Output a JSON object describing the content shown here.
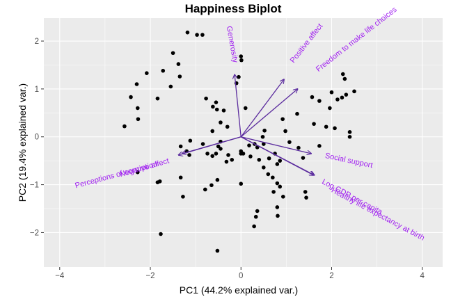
{
  "chart_data": {
    "type": "scatter",
    "title": "Happiness Biplot",
    "xlabel": "PC1 (44.2% explained var.)",
    "ylabel": "PC2 (19.4% explained var.)",
    "xlim": [
      -4.35,
      4.45
    ],
    "ylim": [
      -2.72,
      2.48
    ],
    "xticks": [
      -4,
      -2,
      0,
      2,
      4
    ],
    "yticks": [
      -2,
      -1,
      0,
      1,
      2
    ],
    "xtick_labels": [
      "−4",
      "−2",
      "0",
      "2",
      "4"
    ],
    "ytick_labels": [
      "−2",
      "−1",
      "0",
      "1",
      "2"
    ],
    "grid": true,
    "colors": {
      "panel": "#ebebeb",
      "grid_major": "#ffffff",
      "points": "#000000",
      "arrows": "#5b2c9e",
      "labels": "#a020f0"
    },
    "points": [
      [
        -1.18,
        2.18
      ],
      [
        -0.97,
        2.13
      ],
      [
        -0.85,
        2.13
      ],
      [
        0.0,
        1.68
      ],
      [
        0.01,
        1.6
      ],
      [
        -1.5,
        1.75
      ],
      [
        -1.38,
        1.52
      ],
      [
        -1.72,
        1.38
      ],
      [
        -2.08,
        1.33
      ],
      [
        -1.35,
        1.26
      ],
      [
        -2.3,
        1.1
      ],
      [
        -1.55,
        1.05
      ],
      [
        -0.05,
        1.25
      ],
      [
        -0.1,
        1.12
      ],
      [
        -2.43,
        0.83
      ],
      [
        -1.84,
        0.8
      ],
      [
        -2.28,
        0.6
      ],
      [
        -2.27,
        0.37
      ],
      [
        -2.57,
        0.22
      ],
      [
        -0.77,
        0.8
      ],
      [
        -0.55,
        0.72
      ],
      [
        -0.62,
        0.63
      ],
      [
        -0.53,
        0.57
      ],
      [
        -0.38,
        0.55
      ],
      [
        -0.45,
        0.3
      ],
      [
        -0.3,
        0.21
      ],
      [
        -0.63,
        0.12
      ],
      [
        0.1,
        0.6
      ],
      [
        0.92,
        0.37
      ],
      [
        1.24,
        0.48
      ],
      [
        1.57,
        0.83
      ],
      [
        1.73,
        0.75
      ],
      [
        2.0,
        0.93
      ],
      [
        2.13,
        0.78
      ],
      [
        2.23,
        0.82
      ],
      [
        2.32,
        0.88
      ],
      [
        2.5,
        0.95
      ],
      [
        2.25,
        1.31
      ],
      [
        2.29,
        1.21
      ],
      [
        1.96,
        0.6
      ],
      [
        1.61,
        0.27
      ],
      [
        1.88,
        0.21
      ],
      [
        2.07,
        0.18
      ],
      [
        2.4,
        0.1
      ],
      [
        2.4,
        0.0
      ],
      [
        0.98,
        0.12
      ],
      [
        1.07,
        -0.11
      ],
      [
        1.73,
        -0.19
      ],
      [
        1.27,
        -0.23
      ],
      [
        1.37,
        -0.44
      ],
      [
        0.52,
        0.13
      ],
      [
        0.48,
        0.0
      ],
      [
        0.3,
        -0.15
      ],
      [
        0.18,
        -0.18
      ],
      [
        0.36,
        -0.22
      ],
      [
        0.5,
        -0.15
      ],
      [
        0.75,
        -0.35
      ],
      [
        0.86,
        -0.5
      ],
      [
        0.8,
        -0.57
      ],
      [
        0.62,
        -0.45
      ],
      [
        0.4,
        -0.48
      ],
      [
        0.5,
        -0.64
      ],
      [
        0.6,
        -0.78
      ],
      [
        0.7,
        -0.85
      ],
      [
        0.8,
        -0.97
      ],
      [
        0.86,
        -1.04
      ],
      [
        0.21,
        -0.41
      ],
      [
        0.0,
        -0.3
      ],
      [
        0.05,
        -0.35
      ],
      [
        0.0,
        -0.35
      ],
      [
        -0.2,
        -0.48
      ],
      [
        -0.28,
        -0.38
      ],
      [
        -0.45,
        -0.25
      ],
      [
        -0.55,
        -0.35
      ],
      [
        -0.63,
        -0.4
      ],
      [
        -0.74,
        -0.35
      ],
      [
        -1.14,
        -0.38
      ],
      [
        -1.2,
        -0.3
      ],
      [
        -1.12,
        -0.08
      ],
      [
        -1.33,
        -0.2
      ],
      [
        -0.84,
        -0.15
      ],
      [
        -0.45,
        -0.1
      ],
      [
        -0.5,
        -0.2
      ],
      [
        -0.32,
        -0.52
      ],
      [
        -1.33,
        -0.85
      ],
      [
        -1.79,
        -0.93
      ],
      [
        -1.84,
        -0.95
      ],
      [
        -2.28,
        -0.74
      ],
      [
        0.0,
        -0.98
      ],
      [
        -0.52,
        -0.9
      ],
      [
        -0.65,
        -1.01
      ],
      [
        -0.79,
        -1.1
      ],
      [
        -1.28,
        -1.25
      ],
      [
        1.42,
        -1.15
      ],
      [
        1.44,
        -1.27
      ],
      [
        0.72,
        -1.15
      ],
      [
        0.93,
        -1.25
      ],
      [
        0.8,
        -1.47
      ],
      [
        0.36,
        -1.55
      ],
      [
        0.33,
        -1.67
      ],
      [
        0.81,
        -1.65
      ],
      [
        0.29,
        -1.87
      ],
      [
        -1.77,
        -2.03
      ],
      [
        -0.52,
        -2.38
      ]
    ],
    "loadings": [
      {
        "name": "Generosity",
        "x": -0.14,
        "y": 1.3
      },
      {
        "name": "Positive affect",
        "x": 0.95,
        "y": 1.2
      },
      {
        "name": "Freedom to make life choices",
        "x": 1.25,
        "y": 1.0
      },
      {
        "name": "Social support",
        "x": 1.55,
        "y": -0.35
      },
      {
        "name": "Log GDP per capita",
        "x": 1.62,
        "y": -0.8
      },
      {
        "name": "Healthy life expectancy at birth",
        "x": 1.6,
        "y": -0.8
      },
      {
        "name": "Negative affect",
        "x": -1.3,
        "y": -0.35
      },
      {
        "name": "Perceptions of corruption",
        "x": -1.38,
        "y": -0.38
      }
    ],
    "labels": [
      {
        "name": "Generosity",
        "x": -0.2,
        "y": 1.93,
        "rot": 80,
        "anchor": "middle"
      },
      {
        "name": "Positive affect",
        "x": 1.45,
        "y": 1.95,
        "rot": -52,
        "anchor": "middle"
      },
      {
        "name": "Freedom to make life choices",
        "x": 2.55,
        "y": 2.03,
        "rot": -38,
        "anchor": "middle"
      },
      {
        "name": "Social support",
        "x": 2.38,
        "y": -0.5,
        "rot": 12,
        "anchor": "middle"
      },
      {
        "name": "Log GDP per capita",
        "x": 2.45,
        "y": -1.26,
        "rot": 28,
        "anchor": "middle"
      },
      {
        "name": "Healthy life expectancy at birth",
        "x": 3.02,
        "y": -1.62,
        "rot": 28,
        "anchor": "middle"
      },
      {
        "name": "Negative affect",
        "x": -2.13,
        "y": -0.65,
        "rot": -16,
        "anchor": "middle"
      },
      {
        "name": "Perceptions of corruption",
        "x": -2.75,
        "y": -0.8,
        "rot": -15,
        "anchor": "middle"
      }
    ]
  }
}
